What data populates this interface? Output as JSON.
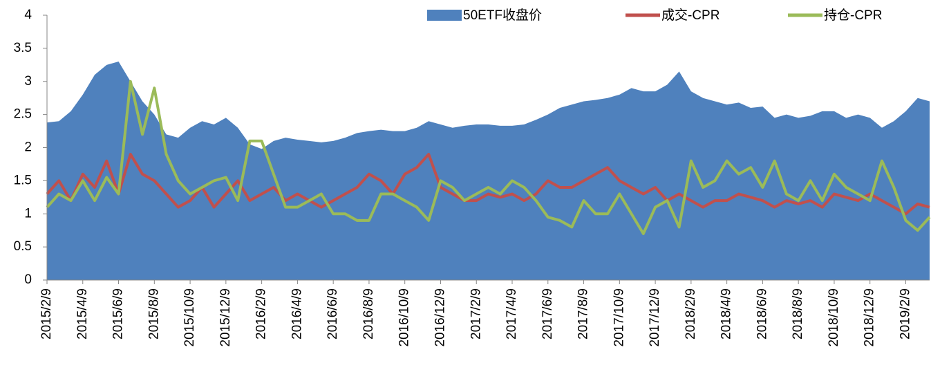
{
  "chart_data": {
    "type": "area-line",
    "categories": [
      "2015/2/9",
      null,
      null,
      "2015/4/9",
      null,
      null,
      "2015/6/9",
      null,
      null,
      "2015/8/9",
      null,
      null,
      "2015/10/9",
      null,
      null,
      "2015/12/9",
      null,
      null,
      "2016/2/9",
      null,
      null,
      "2016/4/9",
      null,
      null,
      "2016/6/9",
      null,
      null,
      "2016/8/9",
      null,
      null,
      "2016/10/9",
      null,
      null,
      "2016/12/9",
      null,
      null,
      "2017/2/9",
      null,
      null,
      "2017/4/9",
      null,
      null,
      "2017/6/9",
      null,
      null,
      "2017/8/9",
      null,
      null,
      "2017/10/9",
      null,
      null,
      "2017/12/9",
      null,
      null,
      "2018/2/9",
      null,
      null,
      "2018/4/9",
      null,
      null,
      "2018/6/9",
      null,
      null,
      "2018/8/9",
      null,
      null,
      "2018/10/9",
      null,
      null,
      "2018/12/9",
      null,
      null,
      "2019/2/9",
      null,
      null
    ],
    "series": [
      {
        "name": "50ETF收盘价",
        "kind": "area",
        "color": "#4f81bd",
        "values": [
          2.38,
          2.4,
          2.55,
          2.8,
          3.1,
          3.25,
          3.3,
          3.0,
          2.7,
          2.5,
          2.2,
          2.15,
          2.3,
          2.4,
          2.35,
          2.45,
          2.3,
          2.05,
          1.98,
          2.1,
          2.15,
          2.12,
          2.1,
          2.08,
          2.1,
          2.15,
          2.22,
          2.25,
          2.27,
          2.25,
          2.25,
          2.3,
          2.4,
          2.35,
          2.3,
          2.33,
          2.35,
          2.35,
          2.33,
          2.33,
          2.35,
          2.42,
          2.5,
          2.6,
          2.65,
          2.7,
          2.72,
          2.75,
          2.8,
          2.9,
          2.85,
          2.85,
          2.95,
          3.15,
          2.85,
          2.75,
          2.7,
          2.65,
          2.68,
          2.6,
          2.62,
          2.45,
          2.5,
          2.45,
          2.48,
          2.55,
          2.55,
          2.45,
          2.5,
          2.45,
          2.3,
          2.4,
          2.55,
          2.75,
          2.7
        ]
      },
      {
        "name": "成交-CPR",
        "kind": "line",
        "color": "#c0504d",
        "values": [
          1.3,
          1.5,
          1.2,
          1.6,
          1.4,
          1.8,
          1.3,
          1.9,
          1.6,
          1.5,
          1.3,
          1.1,
          1.2,
          1.4,
          1.1,
          1.3,
          1.5,
          1.2,
          1.3,
          1.4,
          1.2,
          1.3,
          1.2,
          1.1,
          1.2,
          1.3,
          1.4,
          1.6,
          1.5,
          1.3,
          1.6,
          1.7,
          1.9,
          1.4,
          1.3,
          1.2,
          1.2,
          1.3,
          1.25,
          1.3,
          1.2,
          1.3,
          1.5,
          1.4,
          1.4,
          1.5,
          1.6,
          1.7,
          1.5,
          1.4,
          1.3,
          1.4,
          1.2,
          1.3,
          1.2,
          1.1,
          1.2,
          1.2,
          1.3,
          1.25,
          1.2,
          1.1,
          1.2,
          1.15,
          1.2,
          1.1,
          1.3,
          1.25,
          1.2,
          1.3,
          1.2,
          1.1,
          1.0,
          1.15,
          1.1
        ]
      },
      {
        "name": "持仓-CPR",
        "kind": "line",
        "color": "#9bbb59",
        "values": [
          1.1,
          1.3,
          1.2,
          1.5,
          1.2,
          1.55,
          1.3,
          3.0,
          2.2,
          2.9,
          1.9,
          1.5,
          1.3,
          1.4,
          1.5,
          1.55,
          1.2,
          2.1,
          2.1,
          1.6,
          1.1,
          1.1,
          1.2,
          1.3,
          1.0,
          1.0,
          0.9,
          0.9,
          1.3,
          1.3,
          1.2,
          1.1,
          0.9,
          1.5,
          1.4,
          1.2,
          1.3,
          1.4,
          1.3,
          1.5,
          1.4,
          1.2,
          0.95,
          0.9,
          0.8,
          1.2,
          1.0,
          1.0,
          1.3,
          1.0,
          0.7,
          1.1,
          1.2,
          0.8,
          1.8,
          1.4,
          1.5,
          1.8,
          1.6,
          1.7,
          1.4,
          1.8,
          1.3,
          1.2,
          1.5,
          1.2,
          1.6,
          1.4,
          1.3,
          1.2,
          1.8,
          1.4,
          0.9,
          0.75,
          0.95
        ]
      }
    ],
    "ylim": [
      0,
      4
    ],
    "yticks": [
      0,
      0.5,
      1,
      1.5,
      2,
      2.5,
      3,
      3.5,
      4
    ],
    "grid": false,
    "legend": "top-right"
  }
}
